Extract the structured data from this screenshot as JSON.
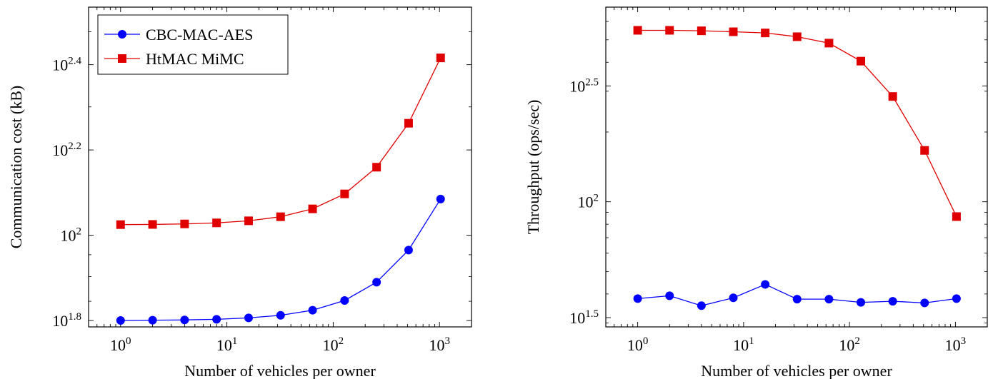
{
  "colors": {
    "blue": "#0000ff",
    "red": "#e00000",
    "axis": "#000000"
  },
  "legend": {
    "items": [
      "CBC-MAC-AES",
      "HtMAC MiMC"
    ]
  },
  "chart_data": [
    {
      "type": "line",
      "xscale": "log10",
      "yscale": "log10",
      "xlabel": "Number of vehicles per owner",
      "ylabel": "Communication cost (kB)",
      "xlim": [
        0.5,
        2000
      ],
      "ylim_log10": [
        1.785,
        2.535
      ],
      "x": [
        1,
        2,
        4,
        8,
        16,
        32,
        64,
        128,
        256,
        512,
        1024
      ],
      "xticks": [
        {
          "value": 1,
          "base": "10",
          "exp": "0"
        },
        {
          "value": 10,
          "base": "10",
          "exp": "1"
        },
        {
          "value": 100,
          "base": "10",
          "exp": "2"
        },
        {
          "value": 1000,
          "base": "10",
          "exp": "3"
        }
      ],
      "yticks": [
        {
          "log10": 1.8,
          "base": "10",
          "exp": "1.8"
        },
        {
          "log10": 2.0,
          "base": "10",
          "exp": "2"
        },
        {
          "log10": 2.2,
          "base": "10",
          "exp": "2.2"
        },
        {
          "log10": 2.4,
          "base": "10",
          "exp": "2.4"
        }
      ],
      "legend_position": "top-left",
      "series": [
        {
          "name": "CBC-MAC-AES",
          "color": "#0000ff",
          "marker": "circle",
          "values": [
            63.1,
            63.2,
            63.3,
            63.5,
            64.0,
            64.9,
            66.7,
            70.3,
            77.6,
            92.3,
            121.6
          ]
        },
        {
          "name": "HtMAC MiMC",
          "color": "#e00000",
          "marker": "square",
          "values": [
            105.9,
            106.0,
            106.3,
            106.9,
            108.1,
            110.5,
            115.3,
            125.0,
            144.4,
            183.1,
            260.6
          ]
        }
      ]
    },
    {
      "type": "line",
      "xscale": "log10",
      "yscale": "log10",
      "xlabel": "Number of vehicles per owner",
      "ylabel": "Throughput (ops/sec)",
      "xlim": [
        0.5,
        2000
      ],
      "ylim_log10": [
        1.46,
        2.84
      ],
      "x": [
        1,
        2,
        4,
        8,
        16,
        32,
        64,
        128,
        256,
        512,
        1024
      ],
      "xticks": [
        {
          "value": 1,
          "base": "10",
          "exp": "0"
        },
        {
          "value": 10,
          "base": "10",
          "exp": "1"
        },
        {
          "value": 100,
          "base": "10",
          "exp": "2"
        },
        {
          "value": 1000,
          "base": "10",
          "exp": "3"
        }
      ],
      "yticks": [
        {
          "log10": 1.5,
          "base": "10",
          "exp": "1.5"
        },
        {
          "log10": 2.0,
          "base": "10",
          "exp": "2"
        },
        {
          "log10": 2.5,
          "base": "10",
          "exp": "2.5"
        }
      ],
      "series": [
        {
          "name": "CBC-MAC-AES",
          "color": "#0000ff",
          "marker": "circle",
          "values": [
            38.2,
            39.3,
            35.6,
            38.5,
            44.0,
            38.0,
            38.0,
            36.8,
            37.2,
            36.6,
            38.2
          ]
        },
        {
          "name": "HtMAC MiMC",
          "color": "#e00000",
          "marker": "square",
          "values": [
            549.5,
            549.5,
            546.9,
            541.6,
            535.4,
            515.6,
            483.9,
            404.5,
            284.7,
            166.6,
            86.3
          ]
        }
      ]
    }
  ]
}
